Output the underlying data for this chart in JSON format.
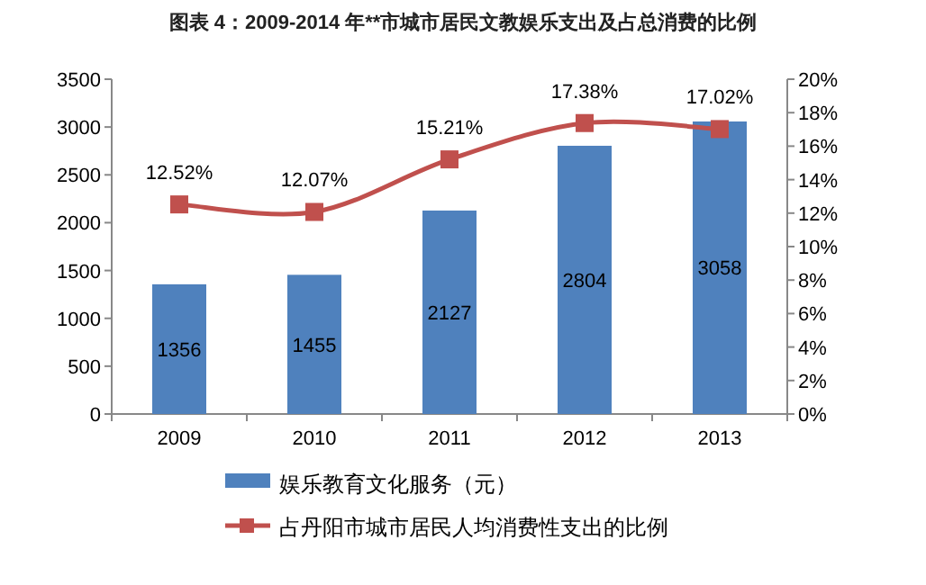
{
  "chart_data": {
    "type": "bar",
    "title": "图表 4：2009-2014 年**市城市居民文教娱乐支出及占总消费的比例",
    "categories": [
      "2009",
      "2010",
      "2011",
      "2012",
      "2013"
    ],
    "series": [
      {
        "name": "娱乐教育文化服务（元）",
        "color": "#4f81bd",
        "values": [
          1356,
          1455,
          2127,
          2804,
          3058
        ],
        "data_labels": true
      },
      {
        "name": "占丹阳市城市居民人均消费性支出的比例",
        "type": "line",
        "axis": "y2",
        "color": "#c0504d",
        "marker": "square",
        "values": [
          12.52,
          12.07,
          15.21,
          17.38,
          17.02
        ],
        "value_labels": [
          "12.52%",
          "12.07%",
          "15.21%",
          "17.38%",
          "17.02%"
        ]
      }
    ],
    "ylim": [
      0,
      3500
    ],
    "yticks": [
      0,
      500,
      1000,
      1500,
      2000,
      2500,
      3000,
      3500
    ],
    "y2lim": [
      0,
      20
    ],
    "y2ticks": [
      {
        "value": 0,
        "label": "0%"
      },
      {
        "value": 2,
        "label": "2%"
      },
      {
        "value": 4,
        "label": "4%"
      },
      {
        "value": 6,
        "label": "6%"
      },
      {
        "value": 8,
        "label": "8%"
      },
      {
        "value": 10,
        "label": "10%"
      },
      {
        "value": 12,
        "label": "12%"
      },
      {
        "value": 14,
        "label": "14%"
      },
      {
        "value": 16,
        "label": "16%"
      },
      {
        "value": 18,
        "label": "18%"
      },
      {
        "value": 20,
        "label": "20%"
      }
    ],
    "legend": "bottom"
  }
}
